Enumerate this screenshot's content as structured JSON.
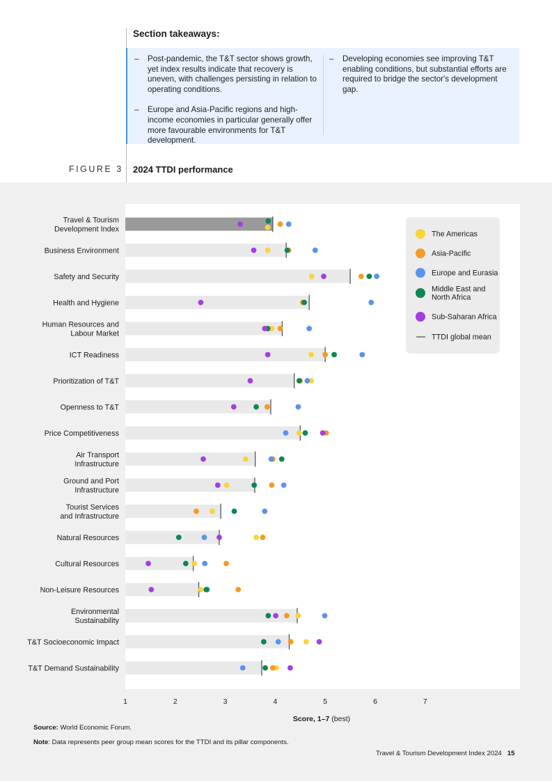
{
  "takeaways": {
    "title": "Section takeaways:",
    "left": [
      "Post-pandemic, the T&T sector shows growth, yet index results indicate that recovery is uneven, with challenges persisting in relation to operating conditions.",
      "Europe and Asia-Pacific regions and high-income economies in particular generally offer more favourable environments for T&T development."
    ],
    "right": [
      "Developing economies see improving T&T enabling conditions, but substantial efforts are required to bridge the sector's development gap."
    ],
    "dash": "–"
  },
  "figure": {
    "label": "FIGURE 3",
    "title": "2024 TTDI performance"
  },
  "chart_data": {
    "type": "scatter",
    "title": "2024 TTDI performance",
    "xlabel": "Score, 1–7 (best)",
    "xlabel_bold": "Score, 1–7",
    "xlabel_rest": " (best)",
    "xlim": [
      1,
      8.9
    ],
    "xticks": [
      1,
      2,
      3,
      4,
      5,
      6,
      7
    ],
    "colors": {
      "americas": "#f8d43a",
      "asia": "#f59a23",
      "europe": "#5b93ec",
      "mena": "#0c8752",
      "ssa": "#a33ee0",
      "bar_index": "#9a9a9b",
      "bar_pillar": "#e9e9ea",
      "mean": "#555555"
    },
    "legend": [
      {
        "key": "americas",
        "label": "The Americas"
      },
      {
        "key": "asia",
        "label": "Asia-Pacific"
      },
      {
        "key": "europe",
        "label": "Europe and Eurasia"
      },
      {
        "key": "mena",
        "label": "Middle East and North Africa"
      },
      {
        "key": "ssa",
        "label": "Sub-Saharan Africa"
      },
      {
        "key": "mean",
        "label": "TTDI global mean",
        "line": true
      }
    ],
    "categories": [
      {
        "label": "Travel & Tourism Development Index",
        "mean": 3.95,
        "americas": 3.85,
        "asia": 4.1,
        "europe": 4.27,
        "mena": 3.86,
        "ssa": 3.3
      },
      {
        "label": "Business Environment",
        "mean": 4.22,
        "americas": 3.85,
        "asia": 4.27,
        "europe": 4.8,
        "mena": 4.24,
        "ssa": 3.57
      },
      {
        "label": "Safety and Security",
        "mean": 5.5,
        "americas": 4.73,
        "asia": 5.72,
        "europe": 6.03,
        "mena": 5.88,
        "ssa": 4.97
      },
      {
        "label": "Health and Hygiene",
        "mean": 4.68,
        "americas": 4.58,
        "asia": 4.55,
        "europe": 5.92,
        "mena": 4.58,
        "ssa": 2.51
      },
      {
        "label": "Human Resources and Labour Market",
        "mean": 4.14,
        "americas": 3.93,
        "asia": 4.1,
        "europe": 4.68,
        "mena": 3.85,
        "ssa": 3.79
      },
      {
        "label": "ICT Readiness",
        "mean": 5.0,
        "americas": 4.72,
        "asia": 5.0,
        "europe": 5.74,
        "mena": 5.18,
        "ssa": 3.85
      },
      {
        "label": "Prioritization of T&T",
        "mean": 4.38,
        "americas": 4.72,
        "asia": 4.5,
        "europe": 4.64,
        "mena": 4.48,
        "ssa": 3.5
      },
      {
        "label": "Openness to T&T",
        "mean": 3.91,
        "americas": 3.84,
        "asia": 3.84,
        "europe": 4.46,
        "mena": 3.62,
        "ssa": 3.17
      },
      {
        "label": "Price Competitiveness",
        "mean": 4.5,
        "americas": 4.48,
        "asia": 5.02,
        "europe": 4.21,
        "mena": 4.6,
        "ssa": 4.95
      },
      {
        "label": "Air Transport Infrastructure",
        "mean": 3.6,
        "americas": 3.41,
        "asia": 3.95,
        "europe": 3.92,
        "mena": 4.13,
        "ssa": 2.56
      },
      {
        "label": "Ground and Port Infrastructure",
        "mean": 3.59,
        "americas": 3.03,
        "asia": 3.93,
        "europe": 4.17,
        "mena": 3.58,
        "ssa": 2.85
      },
      {
        "label": "Tourist Services and Infrastructure",
        "mean": 2.91,
        "americas": 2.74,
        "asia": 2.42,
        "europe": 3.79,
        "mena": 3.18,
        "ssa": null
      },
      {
        "label": "Natural Resources",
        "mean": 2.88,
        "americas": 3.62,
        "asia": 3.75,
        "europe": 2.58,
        "mena": 2.07,
        "ssa": 2.88
      },
      {
        "label": "Cultural Resources",
        "mean": 2.36,
        "americas": 2.38,
        "asia": 3.02,
        "europe": 2.59,
        "mena": 2.21,
        "ssa": 1.46
      },
      {
        "label": "Non-Leisure Resources",
        "mean": 2.47,
        "americas": 2.51,
        "asia": 3.26,
        "europe": 2.64,
        "mena": 2.62,
        "ssa": 1.52
      },
      {
        "label": "Environmental Sustainability",
        "mean": 4.44,
        "americas": 4.46,
        "asia": 4.23,
        "europe": 4.99,
        "mena": 3.86,
        "ssa": 4.01
      },
      {
        "label": "T&T Socioeconomic Impact",
        "mean": 4.28,
        "americas": 4.62,
        "asia": 4.31,
        "europe": 4.06,
        "mena": 3.77,
        "ssa": 4.88
      },
      {
        "label": "T&T Demand Sustainability",
        "mean": 3.73,
        "americas": 4.02,
        "asia": 3.95,
        "europe": 3.35,
        "mena": 3.8,
        "ssa": 4.3
      }
    ]
  },
  "source": {
    "bold": "Source:",
    "text": " World Economic Forum."
  },
  "note": {
    "bold": "Note",
    "text": ": Data represents peer group mean scores for the TTDI and its pillar components."
  },
  "footer": {
    "text": "Travel & Tourism Development Index 2024",
    "page": "15"
  }
}
